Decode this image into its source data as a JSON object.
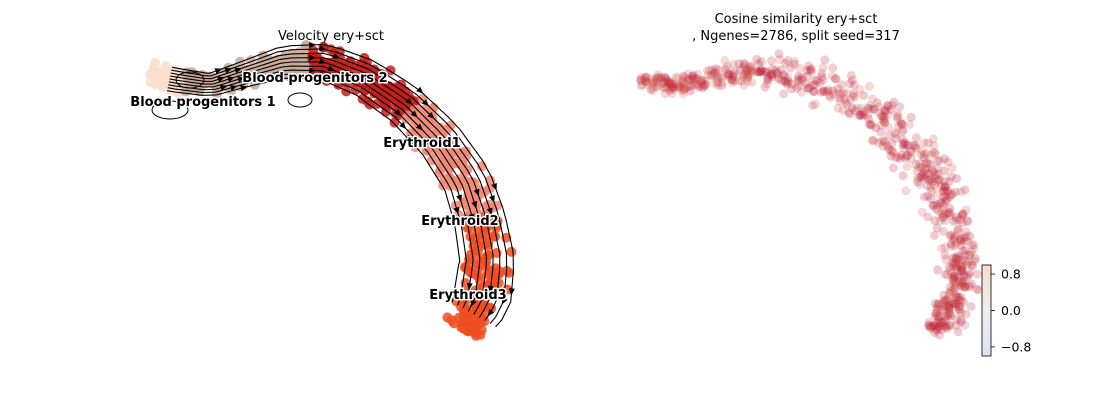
{
  "chart_data": [
    {
      "type": "scatter",
      "title": "Velocity ery+sct",
      "xlabel": "",
      "ylabel": "",
      "axes_visible": false,
      "overlay": "velocity streamlines with arrowheads",
      "categories": [
        "Blood progenitors 1",
        "Blood progenitors 2",
        "Erythroid1",
        "Erythroid2",
        "Erythroid3"
      ],
      "colors": {
        "Blood progenitors 1": "#f9dece",
        "Blood progenitors 2": "#c9aa98",
        "Erythroid1": "#c3201c",
        "Erythroid2": "#ef8a76",
        "Erythroid3": "#f04e22"
      }
    },
    {
      "type": "scatter",
      "title": "Cosine similarity ery+sct\n, Ngenes=2786, split seed=317",
      "xlabel": "",
      "ylabel": "",
      "axes_visible": false,
      "colormap": "coolwarm",
      "dominant_value_color": "#b9112c",
      "colorbar": {
        "range": [
          -1.0,
          1.0
        ],
        "ticks": [
          0.8,
          0.0,
          -0.8
        ],
        "tick_labels": [
          "0.8",
          "0.0",
          "−0.8"
        ],
        "position": "right"
      }
    }
  ]
}
